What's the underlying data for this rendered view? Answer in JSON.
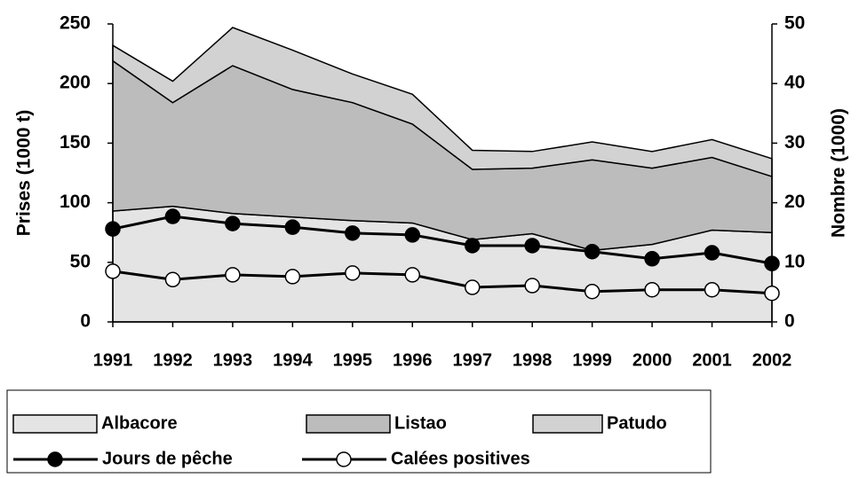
{
  "chart_data": {
    "type": "area",
    "stacked": true,
    "categories": [
      "1991",
      "1992",
      "1993",
      "1994",
      "1995",
      "1996",
      "1997",
      "1998",
      "1999",
      "2000",
      "2001",
      "2002"
    ],
    "y_label": "Prises (1000 t)",
    "y2_label": "Nombre (1000)",
    "ylim": [
      0,
      250
    ],
    "yticks": [
      0,
      50,
      100,
      150,
      200,
      250
    ],
    "y2lim": [
      0,
      50
    ],
    "y2ticks": [
      0,
      10,
      20,
      30,
      40,
      50
    ],
    "series": [
      {
        "name": "Albacore",
        "color": "#e4e4e4",
        "values": [
          93,
          97,
          91,
          88,
          85,
          83,
          69,
          74,
          60,
          65,
          77,
          75
        ]
      },
      {
        "name": "Listao",
        "color": "#bcbcbc",
        "values": [
          126,
          87,
          124,
          107,
          99,
          83,
          59,
          55,
          76,
          64,
          61,
          47
        ]
      },
      {
        "name": "Patudo",
        "color": "#d2d2d2",
        "values": [
          13,
          18,
          32,
          33,
          24,
          25,
          16,
          14,
          15,
          14,
          15,
          15
        ]
      },
      {
        "name": "Jours de pêche",
        "type": "line",
        "axis": "y2",
        "color": "#000000",
        "marker_fill": "#000000",
        "values": [
          15.6,
          17.7,
          16.5,
          15.9,
          14.9,
          14.6,
          12.8,
          12.8,
          11.8,
          10.6,
          11.6,
          9.8
        ]
      },
      {
        "name": "Calées positives",
        "type": "line",
        "axis": "y2",
        "color": "#000000",
        "marker_fill": "#ffffff",
        "values": [
          8.5,
          7.1,
          7.9,
          7.6,
          8.2,
          7.9,
          5.8,
          6.1,
          5.1,
          5.4,
          5.4,
          4.8
        ]
      }
    ]
  }
}
